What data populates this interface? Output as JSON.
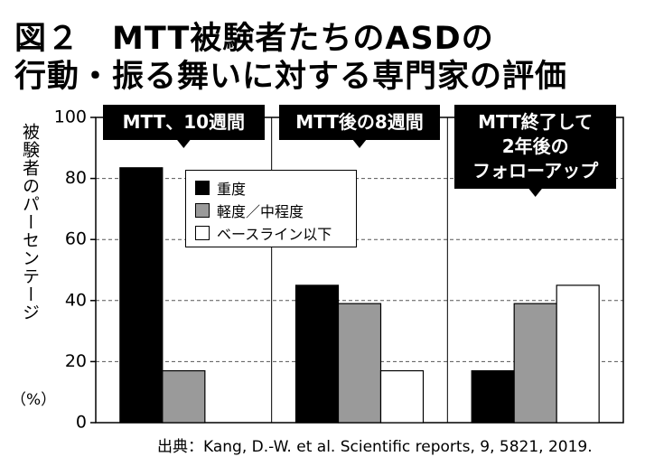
{
  "chart_data": {
    "type": "bar",
    "title": [
      "図２　MTT被験者たちのASDの",
      "行動・振る舞いに対する専門家の評価"
    ],
    "y_label": "被験者のパーセンテージ",
    "y_unit": "（%）",
    "categories": [
      "MTT、10週間",
      "MTT後の8週間",
      "MTT終了して\n2年後の\nフォローアップ"
    ],
    "series": [
      {
        "name": "重度",
        "color": "#000000",
        "values": [
          83.5,
          45,
          17
        ]
      },
      {
        "name": "軽度／中程度",
        "color": "#9a9a9a",
        "values": [
          17,
          39,
          39
        ]
      },
      {
        "name": "ベースライン以下",
        "color": "#ffffff",
        "values": [
          0,
          17,
          45
        ]
      }
    ],
    "ylim": [
      0,
      100
    ],
    "yticks": [
      0,
      20,
      40,
      60,
      80,
      100
    ],
    "grid": true,
    "source": "出典：Kang, D.-W. et al. Scientific reports, 9, 5821, 2019."
  }
}
